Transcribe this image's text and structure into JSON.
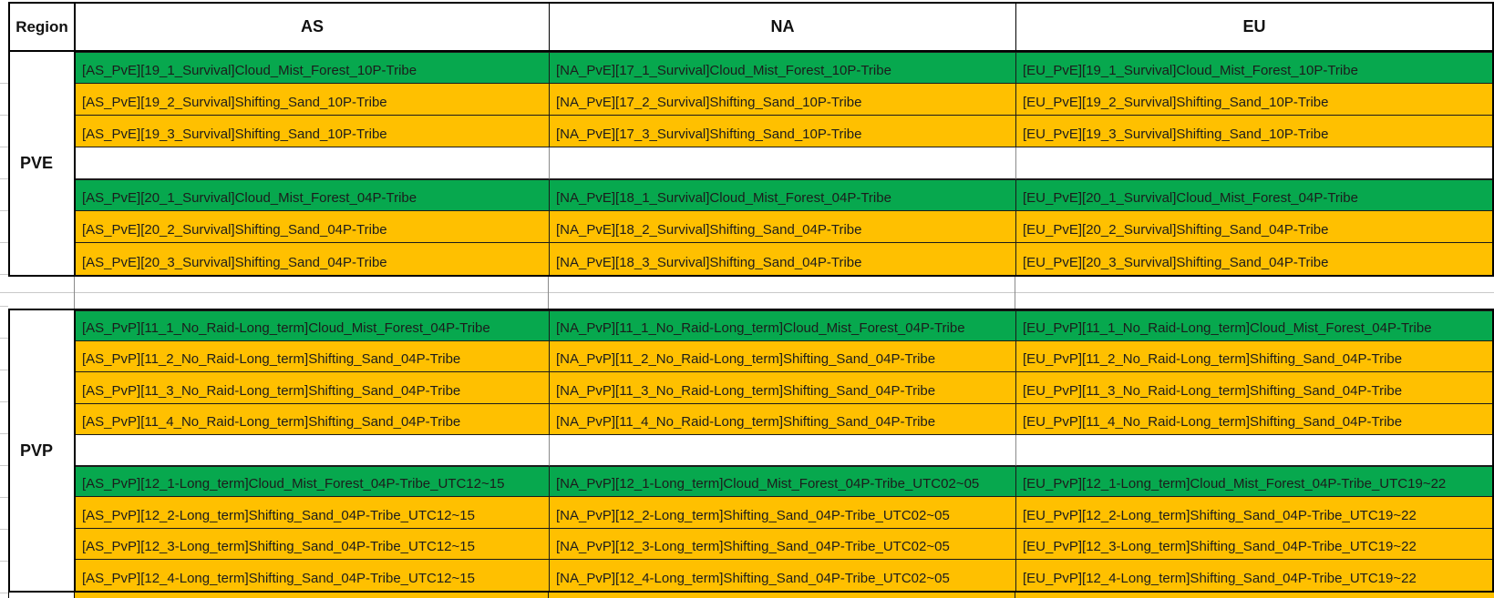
{
  "table": {
    "headers": {
      "region": "Region",
      "as": "AS",
      "na": "NA",
      "eu": "EU"
    },
    "colors": {
      "available_green": "#07A84E",
      "full_orange": "#FFC000",
      "border_black": "#000000",
      "gridline_gray": "#C9C9C9",
      "text": "#1C1C1C"
    },
    "sections": [
      {
        "label": "PVE",
        "rows": [
          {
            "color": "green",
            "as": "[AS_PvE][19_1_Survival]Cloud_Mist_Forest_10P-Tribe",
            "na": "[NA_PvE][17_1_Survival]Cloud_Mist_Forest_10P-Tribe",
            "eu": "[EU_PvE][19_1_Survival]Cloud_Mist_Forest_10P-Tribe"
          },
          {
            "color": "orange",
            "as": "[AS_PvE][19_2_Survival]Shifting_Sand_10P-Tribe",
            "na": "[NA_PvE][17_2_Survival]Shifting_Sand_10P-Tribe",
            "eu": "[EU_PvE][19_2_Survival]Shifting_Sand_10P-Tribe"
          },
          {
            "color": "orange",
            "as": "[AS_PvE][19_3_Survival]Shifting_Sand_10P-Tribe",
            "na": "[NA_PvE][17_3_Survival]Shifting_Sand_10P-Tribe",
            "eu": "[EU_PvE][19_3_Survival]Shifting_Sand_10P-Tribe"
          },
          {
            "color": "blank",
            "as": "",
            "na": "",
            "eu": ""
          },
          {
            "color": "green",
            "as": "[AS_PvE][20_1_Survival]Cloud_Mist_Forest_04P-Tribe",
            "na": "[NA_PvE][18_1_Survival]Cloud_Mist_Forest_04P-Tribe",
            "eu": "[EU_PvE][20_1_Survival]Cloud_Mist_Forest_04P-Tribe"
          },
          {
            "color": "orange",
            "as": "[AS_PvE][20_2_Survival]Shifting_Sand_04P-Tribe",
            "na": "[NA_PvE][18_2_Survival]Shifting_Sand_04P-Tribe",
            "eu": "[EU_PvE][20_2_Survival]Shifting_Sand_04P-Tribe"
          },
          {
            "color": "orange",
            "as": "[AS_PvE][20_3_Survival]Shifting_Sand_04P-Tribe",
            "na": "[NA_PvE][18_3_Survival]Shifting_Sand_04P-Tribe",
            "eu": "[EU_PvE][20_3_Survival]Shifting_Sand_04P-Tribe"
          }
        ]
      },
      {
        "label": "PVP",
        "rows": [
          {
            "color": "green",
            "as": "[AS_PvP][11_1_No_Raid-Long_term]Cloud_Mist_Forest_04P-Tribe",
            "na": "[NA_PvP][11_1_No_Raid-Long_term]Cloud_Mist_Forest_04P-Tribe",
            "eu": "[EU_PvP][11_1_No_Raid-Long_term]Cloud_Mist_Forest_04P-Tribe"
          },
          {
            "color": "orange",
            "as": "[AS_PvP][11_2_No_Raid-Long_term]Shifting_Sand_04P-Tribe",
            "na": "[NA_PvP][11_2_No_Raid-Long_term]Shifting_Sand_04P-Tribe",
            "eu": "[EU_PvP][11_2_No_Raid-Long_term]Shifting_Sand_04P-Tribe"
          },
          {
            "color": "orange",
            "as": "[AS_PvP][11_3_No_Raid-Long_term]Shifting_Sand_04P-Tribe",
            "na": "[NA_PvP][11_3_No_Raid-Long_term]Shifting_Sand_04P-Tribe",
            "eu": "[EU_PvP][11_3_No_Raid-Long_term]Shifting_Sand_04P-Tribe"
          },
          {
            "color": "orange",
            "as": "[AS_PvP][11_4_No_Raid-Long_term]Shifting_Sand_04P-Tribe",
            "na": "[NA_PvP][11_4_No_Raid-Long_term]Shifting_Sand_04P-Tribe",
            "eu": "[EU_PvP][11_4_No_Raid-Long_term]Shifting_Sand_04P-Tribe"
          },
          {
            "color": "blank",
            "as": "",
            "na": "",
            "eu": ""
          },
          {
            "color": "green",
            "as": "[AS_PvP][12_1-Long_term]Cloud_Mist_Forest_04P-Tribe_UTC12~15",
            "na": "[NA_PvP][12_1-Long_term]Cloud_Mist_Forest_04P-Tribe_UTC02~05",
            "eu": "[EU_PvP][12_1-Long_term]Cloud_Mist_Forest_04P-Tribe_UTC19~22"
          },
          {
            "color": "orange",
            "as": "[AS_PvP][12_2-Long_term]Shifting_Sand_04P-Tribe_UTC12~15",
            "na": "[NA_PvP][12_2-Long_term]Shifting_Sand_04P-Tribe_UTC02~05",
            "eu": "[EU_PvP][12_2-Long_term]Shifting_Sand_04P-Tribe_UTC19~22"
          },
          {
            "color": "orange",
            "as": "[AS_PvP][12_3-Long_term]Shifting_Sand_04P-Tribe_UTC12~15",
            "na": "[NA_PvP][12_3-Long_term]Shifting_Sand_04P-Tribe_UTC02~05",
            "eu": "[EU_PvP][12_3-Long_term]Shifting_Sand_04P-Tribe_UTC19~22"
          },
          {
            "color": "orange",
            "as": "[AS_PvP][12_4-Long_term]Shifting_Sand_04P-Tribe_UTC12~15",
            "na": "[NA_PvP][12_4-Long_term]Shifting_Sand_04P-Tribe_UTC02~05",
            "eu": "[EU_PvP][12_4-Long_term]Shifting_Sand_04P-Tribe_UTC19~22"
          }
        ]
      }
    ]
  }
}
